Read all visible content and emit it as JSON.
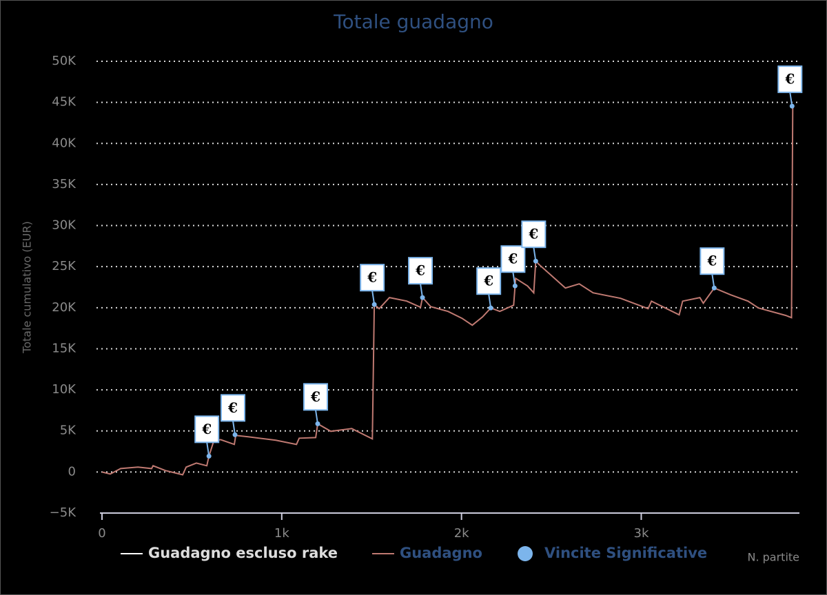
{
  "chart_data": {
    "type": "line",
    "title": "Totale guadagno",
    "y_label": "Totale cumulativo (EUR)",
    "x_label": "N. partite",
    "xlim": [
      0,
      3880
    ],
    "ylim": [
      -5000,
      50000
    ],
    "xticks": [
      0,
      {
        "value": 1000,
        "label": "1k"
      },
      {
        "value": 2000,
        "label": "2k"
      },
      {
        "value": 3000,
        "label": "3k"
      }
    ],
    "yticks": [
      {
        "value": -5000,
        "label": "−5K"
      },
      0,
      {
        "value": 5000,
        "label": "5K"
      },
      {
        "value": 10000,
        "label": "10K"
      },
      {
        "value": 15000,
        "label": "15K"
      },
      {
        "value": 20000,
        "label": "20K"
      },
      {
        "value": 25000,
        "label": "25K"
      },
      {
        "value": 30000,
        "label": "30K"
      },
      {
        "value": 35000,
        "label": "35K"
      },
      {
        "value": 40000,
        "label": "40K"
      },
      {
        "value": 45000,
        "label": "45K"
      },
      {
        "value": 50000,
        "label": "50K"
      }
    ],
    "grid": true,
    "flag_label": "€",
    "series": [
      {
        "name": "Guadagno escluso rake",
        "color": "#ffffff",
        "visible": false
      },
      {
        "name": "Guadagno",
        "color": "#c07a72",
        "x": [
          0,
          46,
          104,
          200,
          276,
          284,
          353,
          449,
          468,
          525,
          583,
          595,
          622,
          660,
          736,
          744,
          813,
          967,
          1082,
          1097,
          1189,
          1200,
          1273,
          1389,
          1504,
          1515,
          1542,
          1599,
          1695,
          1772,
          1783,
          1829,
          1925,
          2003,
          2060,
          2117,
          2163,
          2213,
          2290,
          2301,
          2367,
          2402,
          2413,
          2432,
          2501,
          2578,
          2655,
          2732,
          2885,
          3038,
          3057,
          3211,
          3230,
          3326,
          3345,
          3406,
          3498,
          3594,
          3652,
          3805,
          3836,
          3843
        ],
        "values": [
          0,
          -250,
          420,
          590,
          420,
          760,
          170,
          -340,
          590,
          1090,
          760,
          1930,
          3780,
          3940,
          3360,
          4450,
          4280,
          3860,
          3360,
          4110,
          4190,
          5870,
          4950,
          5290,
          4030,
          20390,
          19880,
          21230,
          20810,
          20050,
          21230,
          20130,
          19550,
          18710,
          17870,
          18880,
          19970,
          19550,
          20300,
          23570,
          22650,
          21810,
          25670,
          25250,
          23910,
          22400,
          22900,
          21810,
          21140,
          19880,
          20800,
          19130,
          20800,
          21230,
          20550,
          22400,
          21560,
          20800,
          19970,
          19050,
          18790,
          44460
        ]
      },
      {
        "name": "Vincite Significative",
        "color": "#7cb5ec",
        "marker": true,
        "x": [
          595,
          740,
          1200,
          1515,
          1783,
          2163,
          2298,
          2413,
          3406,
          3839
        ],
        "values": [
          1930,
          4530,
          5870,
          20390,
          21230,
          19970,
          22650,
          25670,
          22400,
          44540
        ]
      }
    ]
  }
}
